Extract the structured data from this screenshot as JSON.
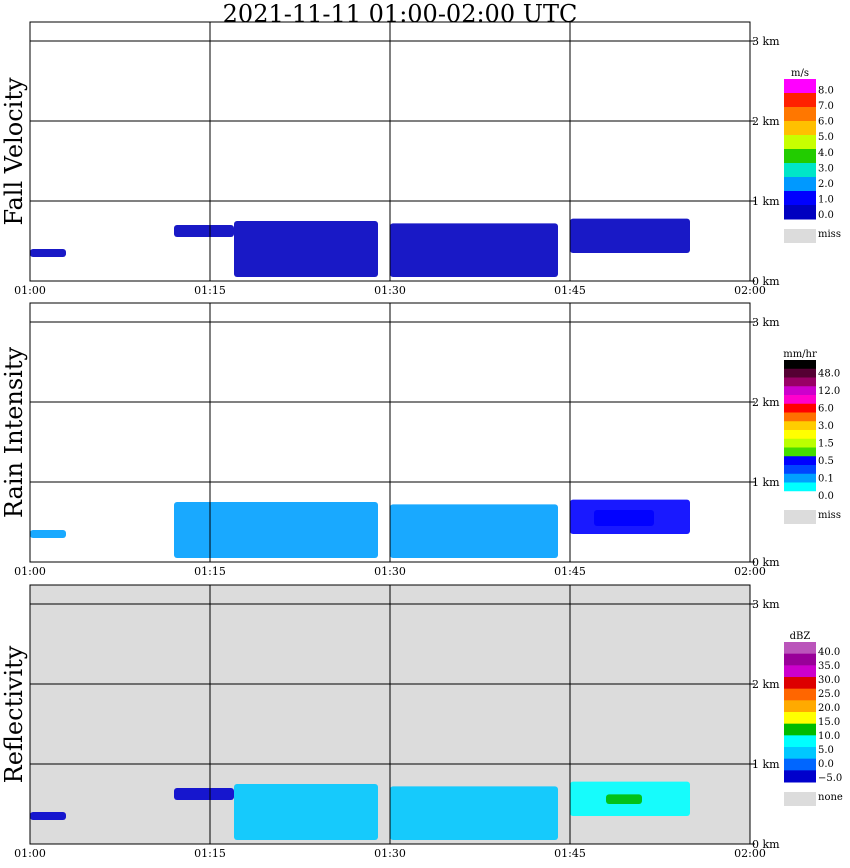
{
  "title": "2021-11-11   01:00-02:00 UTC",
  "x_ticks": [
    "01:00",
    "01:15",
    "01:30",
    "01:45",
    "02:00"
  ],
  "y_ticks": [
    "0 km",
    "1 km",
    "2 km",
    "3 km"
  ],
  "chart_data": [
    {
      "type": "heatmap",
      "ylabel": "Fall Velocity",
      "xlim": [
        "01:00",
        "02:00"
      ],
      "ylim_km": [
        0,
        3.15
      ],
      "background": "#ffffff",
      "legend": {
        "unit": "m/s",
        "placement": "right",
        "levels": [
          "8.0",
          "7.0",
          "6.0",
          "5.0",
          "4.0",
          "3.0",
          "2.0",
          "1.0",
          "0.0"
        ],
        "colors": [
          "#ff00ff",
          "#ff2000",
          "#ff7700",
          "#ffc000",
          "#c8ff00",
          "#22cc00",
          "#00e6c8",
          "#0099ff",
          "#0000ff",
          "#0000c0"
        ],
        "miss_label": "miss",
        "miss_color": "#dcdcdc"
      },
      "echoes": [
        {
          "t_start": "01:00",
          "t_end": "01:03",
          "base_km": 0.3,
          "top_km": 0.4,
          "value": 1.0
        },
        {
          "t_start": "01:12",
          "t_end": "01:17",
          "base_km": 0.55,
          "top_km": 0.7,
          "value": 0.5
        },
        {
          "t_start": "01:17",
          "t_end": "01:29",
          "base_km": 0.05,
          "top_km": 0.75,
          "value": 0.8
        },
        {
          "t_start": "01:30",
          "t_end": "01:44",
          "base_km": 0.05,
          "top_km": 0.72,
          "value": 0.8
        },
        {
          "t_start": "01:45",
          "t_end": "01:55",
          "base_km": 0.35,
          "top_km": 0.78,
          "value": 1.2
        }
      ]
    },
    {
      "type": "heatmap",
      "ylabel": "Rain Intensity",
      "xlim": [
        "01:00",
        "02:00"
      ],
      "ylim_km": [
        0,
        3.15
      ],
      "background": "#ffffff",
      "legend": {
        "unit": "mm/hr",
        "placement": "right",
        "levels": [
          "48.0",
          "12.0",
          "6.0",
          "3.0",
          "1.5",
          "0.5",
          "0.1",
          "0.0"
        ],
        "colors": [
          "#000000",
          "#550033",
          "#990066",
          "#cc00cc",
          "#ff00cc",
          "#ff0000",
          "#ff7000",
          "#ffcc00",
          "#ffff00",
          "#bbff00",
          "#44dd00",
          "#0000ff",
          "#0044ff",
          "#00a0ff",
          "#00ffff",
          "#ffffff"
        ],
        "miss_label": "miss",
        "miss_color": "#dcdcdc"
      },
      "echoes": [
        {
          "t_start": "01:00",
          "t_end": "01:03",
          "base_km": 0.3,
          "top_km": 0.4,
          "value": 0.1
        },
        {
          "t_start": "01:12",
          "t_end": "01:29",
          "base_km": 0.05,
          "top_km": 0.75,
          "value": 0.1
        },
        {
          "t_start": "01:30",
          "t_end": "01:44",
          "base_km": 0.05,
          "top_km": 0.72,
          "value": 0.3
        },
        {
          "t_start": "01:45",
          "t_end": "01:55",
          "base_km": 0.35,
          "top_km": 0.78,
          "value": 0.5
        },
        {
          "t_start": "01:47",
          "t_end": "01:52",
          "base_km": 0.45,
          "top_km": 0.65,
          "value": 1.0
        }
      ]
    },
    {
      "type": "heatmap",
      "ylabel": "Reflectivity",
      "xlim": [
        "01:00",
        "02:00"
      ],
      "ylim_km": [
        0,
        3.15
      ],
      "background": "#dcdcdc",
      "legend": {
        "unit": "dBZ",
        "placement": "right",
        "levels": [
          "40.0",
          "35.0",
          "30.0",
          "25.0",
          "20.0",
          "15.0",
          "10.0",
          "5.0",
          "0.0",
          "−5.0"
        ],
        "colors": [
          "#bb55bb",
          "#990099",
          "#cc00cc",
          "#dd0000",
          "#ff6600",
          "#ffaa00",
          "#ffff00",
          "#00bb00",
          "#00ffff",
          "#00c8ff",
          "#0066ff",
          "#0000cc"
        ],
        "miss_label": "none",
        "miss_color": "#dcdcdc"
      },
      "echoes": [
        {
          "t_start": "01:00",
          "t_end": "01:03",
          "base_km": 0.3,
          "top_km": 0.4,
          "value": -5
        },
        {
          "t_start": "01:12",
          "t_end": "01:17",
          "base_km": 0.55,
          "top_km": 0.7,
          "value": -5
        },
        {
          "t_start": "01:17",
          "t_end": "01:29",
          "base_km": 0.05,
          "top_km": 0.75,
          "value": 5
        },
        {
          "t_start": "01:30",
          "t_end": "01:44",
          "base_km": 0.05,
          "top_km": 0.72,
          "value": 5
        },
        {
          "t_start": "01:45",
          "t_end": "01:55",
          "base_km": 0.35,
          "top_km": 0.78,
          "value": 10
        },
        {
          "t_start": "01:48",
          "t_end": "01:51",
          "base_km": 0.5,
          "top_km": 0.62,
          "value": 15
        }
      ]
    }
  ]
}
